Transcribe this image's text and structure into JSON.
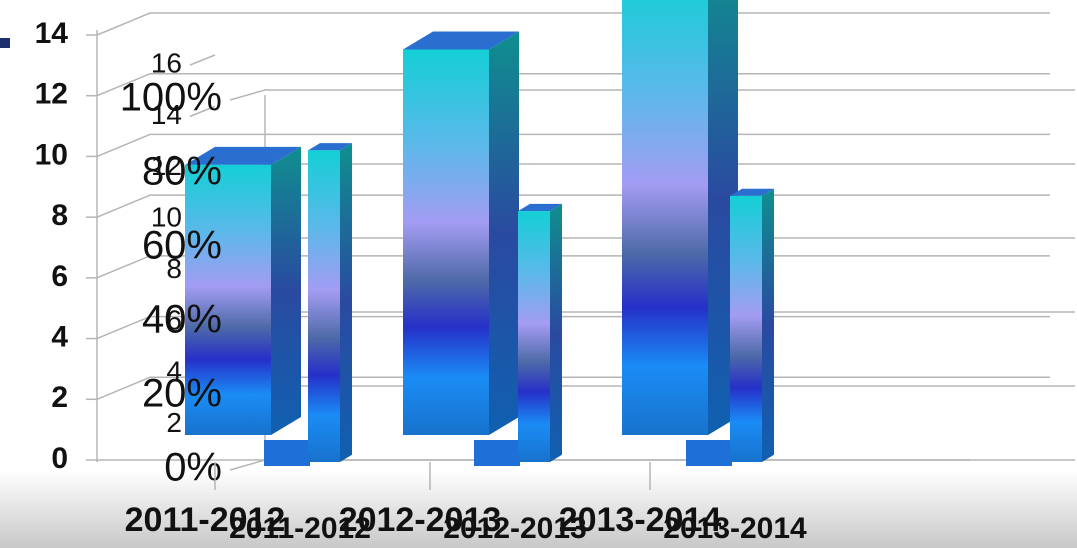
{
  "chart_data": {
    "type": "bar",
    "categories": [
      "2011-2012",
      "2012-2013",
      "2013-2014"
    ],
    "secondary_categories": [
      "2011-2012",
      "2012-2013",
      "2013-2014"
    ],
    "series": [
      {
        "color": "#1a8cf0",
        "values": [
          8.9,
          12.7,
          15
        ]
      },
      {
        "color": "#1a8cf0",
        "values": [
          10.2,
          8.2,
          8.7
        ]
      }
    ],
    "ylim": [
      0,
      14
    ],
    "yticks": [
      0,
      2,
      4,
      6,
      8,
      10,
      12,
      14
    ],
    "y2lim": [
      0,
      100
    ],
    "y2ticks": [
      {
        "value": 0,
        "label": "0%"
      },
      {
        "value": 20,
        "label": "20%"
      },
      {
        "value": 40,
        "label": "40%"
      },
      {
        "value": 60,
        "label": "60%"
      },
      {
        "value": 80,
        "label": "80%"
      },
      {
        "value": 100,
        "label": "100%"
      }
    ],
    "y3lim": [
      0,
      16
    ],
    "y3ticks": [
      2,
      4,
      6,
      8,
      10,
      12,
      14,
      16
    ],
    "grid": true
  }
}
